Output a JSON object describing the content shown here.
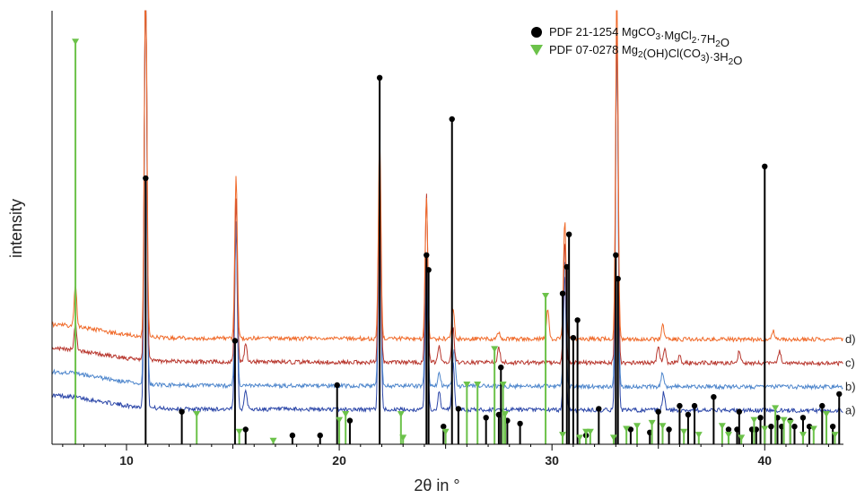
{
  "chart_data": {
    "type": "line",
    "xlabel": "2θ in °",
    "ylabel": "intensity",
    "xlim": [
      6.5,
      43.7
    ],
    "x_ticks": [
      "10",
      "20",
      "30",
      "40"
    ],
    "legend_placement": "top-right",
    "legend": [
      {
        "marker": "circle",
        "color": "#000000",
        "text": "PDF 21-1254 MgCO",
        "sub1": "3",
        "text2": "·MgCl",
        "sub2": "2",
        "text3": "·7H",
        "sub3": "2",
        "text4": "O"
      },
      {
        "marker": "triangle-down",
        "color": "#6cc24a",
        "text": "PDF 07-0278 Mg",
        "sub1": "2",
        "text2": "(OH)Cl(CO",
        "sub2": "3",
        "text3": ")·3H",
        "sub3": "2",
        "text4": "O"
      }
    ],
    "series": [
      {
        "label": "a)",
        "color": "#2b46a8",
        "baseline": 0.12,
        "peaks": [
          [
            10.9,
            1.55
          ],
          [
            15.15,
            0.62
          ],
          [
            15.6,
            0.07
          ],
          [
            21.9,
            0.82
          ],
          [
            24.1,
            0.49
          ],
          [
            24.7,
            0.06
          ],
          [
            25.35,
            0.16
          ],
          [
            30.6,
            0.46
          ],
          [
            33.05,
            1.3
          ],
          [
            35.25,
            0.06
          ],
          [
            40.0,
            0.005
          ]
        ]
      },
      {
        "label": "b)",
        "color": "#4e86cc",
        "baseline": 0.2,
        "peaks": [
          [
            10.9,
            1.45
          ],
          [
            15.15,
            0.55
          ],
          [
            21.9,
            0.74
          ],
          [
            24.1,
            0.45
          ],
          [
            24.7,
            0.05
          ],
          [
            25.4,
            0.12
          ],
          [
            30.6,
            0.43
          ],
          [
            33.05,
            1.2
          ],
          [
            35.2,
            0.05
          ]
        ]
      },
      {
        "label": "c)",
        "color": "#b8372e",
        "baseline": 0.28,
        "peaks": [
          [
            7.6,
            0.09
          ],
          [
            10.9,
            1.32
          ],
          [
            15.15,
            0.55
          ],
          [
            15.6,
            0.06
          ],
          [
            21.9,
            0.7
          ],
          [
            24.1,
            0.57
          ],
          [
            24.7,
            0.06
          ],
          [
            25.35,
            0.12
          ],
          [
            27.5,
            0.05
          ],
          [
            30.6,
            0.41
          ],
          [
            33.05,
            1.15
          ],
          [
            35.0,
            0.06
          ],
          [
            35.3,
            0.05
          ],
          [
            36.0,
            0.03
          ],
          [
            38.8,
            0.04
          ],
          [
            40.7,
            0.04
          ]
        ]
      },
      {
        "label": "d)",
        "color": "#f06a2a",
        "baseline": 0.36,
        "peaks": [
          [
            7.6,
            0.14
          ],
          [
            10.9,
            1.3
          ],
          [
            15.15,
            0.55
          ],
          [
            21.9,
            0.68
          ],
          [
            24.1,
            0.48
          ],
          [
            25.35,
            0.1
          ],
          [
            27.5,
            0.02
          ],
          [
            29.8,
            0.1
          ],
          [
            30.6,
            0.4
          ],
          [
            33.05,
            1.18
          ],
          [
            35.2,
            0.05
          ],
          [
            40.4,
            0.03
          ]
        ]
      }
    ],
    "reference_black_circle": [
      [
        10.9,
        0.9
      ],
      [
        12.6,
        0.11
      ],
      [
        15.1,
        0.35
      ],
      [
        15.6,
        0.05
      ],
      [
        17.8,
        0.03
      ],
      [
        19.1,
        0.03
      ],
      [
        19.9,
        0.2
      ],
      [
        20.5,
        0.08
      ],
      [
        21.9,
        1.24
      ],
      [
        24.1,
        0.64
      ],
      [
        24.2,
        0.59
      ],
      [
        24.9,
        0.06
      ],
      [
        25.3,
        1.1
      ],
      [
        25.6,
        0.12
      ],
      [
        26.9,
        0.09
      ],
      [
        27.5,
        0.1
      ],
      [
        27.6,
        0.26
      ],
      [
        27.9,
        0.08
      ],
      [
        28.5,
        0.07
      ],
      [
        30.5,
        0.51
      ],
      [
        30.7,
        0.6
      ],
      [
        30.8,
        0.71
      ],
      [
        31.0,
        0.36
      ],
      [
        31.2,
        0.42
      ],
      [
        31.6,
        0.03
      ],
      [
        32.2,
        0.12
      ],
      [
        33.0,
        0.64
      ],
      [
        33.1,
        0.56
      ],
      [
        33.7,
        0.05
      ],
      [
        34.6,
        0.04
      ],
      [
        35.0,
        0.11
      ],
      [
        35.5,
        0.05
      ],
      [
        36.0,
        0.13
      ],
      [
        36.4,
        0.1
      ],
      [
        36.7,
        0.13
      ],
      [
        37.6,
        0.16
      ],
      [
        38.3,
        0.05
      ],
      [
        38.7,
        0.05
      ],
      [
        38.8,
        0.11
      ],
      [
        39.4,
        0.05
      ],
      [
        39.6,
        0.05
      ],
      [
        39.8,
        0.09
      ],
      [
        40.0,
        0.94
      ],
      [
        40.3,
        0.06
      ],
      [
        40.6,
        0.09
      ],
      [
        40.8,
        0.06
      ],
      [
        41.2,
        0.08
      ],
      [
        41.4,
        0.06
      ],
      [
        41.8,
        0.09
      ],
      [
        42.1,
        0.06
      ],
      [
        42.7,
        0.13
      ],
      [
        43.2,
        0.06
      ],
      [
        43.5,
        0.17
      ]
    ],
    "reference_green_triangle": [
      [
        7.6,
        1.36
      ],
      [
        13.3,
        0.1
      ],
      [
        15.3,
        0.04
      ],
      [
        16.9,
        0.01
      ],
      [
        20.0,
        0.08
      ],
      [
        20.3,
        0.1
      ],
      [
        22.9,
        0.1
      ],
      [
        23.0,
        0.02
      ],
      [
        25.0,
        0.04
      ],
      [
        26.0,
        0.2
      ],
      [
        26.5,
        0.2
      ],
      [
        27.3,
        0.32
      ],
      [
        27.7,
        0.2
      ],
      [
        27.8,
        0.1
      ],
      [
        29.7,
        0.5
      ],
      [
        30.5,
        0.03
      ],
      [
        31.3,
        0.02
      ],
      [
        31.6,
        0.04
      ],
      [
        31.8,
        0.04
      ],
      [
        32.9,
        0.02
      ],
      [
        33.5,
        0.05
      ],
      [
        34.0,
        0.06
      ],
      [
        34.7,
        0.07
      ],
      [
        35.2,
        0.06
      ],
      [
        36.2,
        0.04
      ],
      [
        36.9,
        0.03
      ],
      [
        38.0,
        0.06
      ],
      [
        38.3,
        0.03
      ],
      [
        38.9,
        0.02
      ],
      [
        39.5,
        0.08
      ],
      [
        40.0,
        0.05
      ],
      [
        40.5,
        0.12
      ],
      [
        40.9,
        0.08
      ],
      [
        41.2,
        0.07
      ],
      [
        41.8,
        0.03
      ],
      [
        42.3,
        0.05
      ],
      [
        42.9,
        0.1
      ],
      [
        43.3,
        0.03
      ]
    ]
  }
}
